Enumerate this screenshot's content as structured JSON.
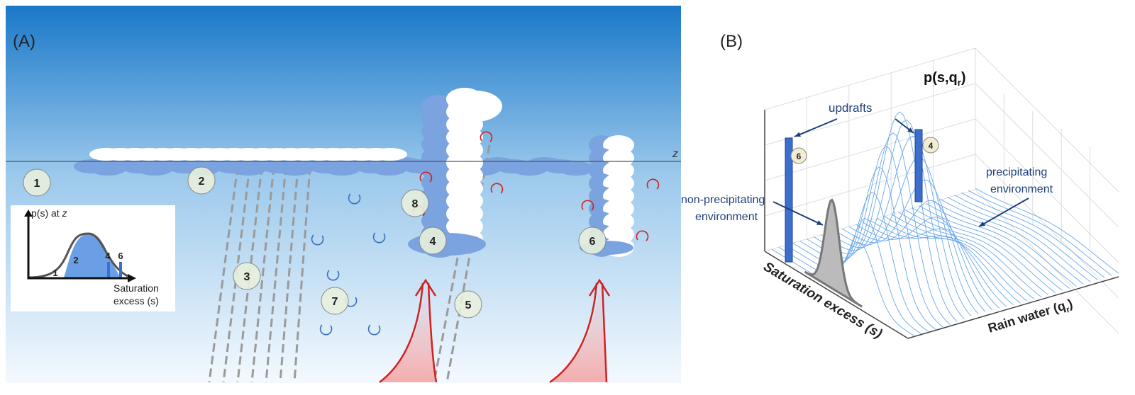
{
  "panel_a": {
    "label": "(A)",
    "height_label": "z",
    "markers": [
      "1",
      "2",
      "3",
      "4",
      "5",
      "6",
      "7",
      "8"
    ],
    "inset": {
      "y_label": "p(s) at ",
      "y_label_var": "z",
      "regions": [
        "1",
        "2",
        "4",
        "6"
      ],
      "x_label": [
        "Saturation",
        "excess (s)"
      ]
    }
  },
  "panel_b": {
    "label": "(B)",
    "z_label": {
      "text": "p(s,q",
      "sub": "r",
      "end": ")"
    },
    "updrafts_label": "updrafts",
    "bars": [
      "6",
      "4"
    ],
    "precip_label": [
      "precipitating",
      "environment"
    ],
    "nonprecip_label": [
      "non-precipitating",
      "environment"
    ],
    "x_label": "Saturation excess (s)",
    "y_label": {
      "text": "Rain water (q",
      "sub": "r",
      "end": ")"
    }
  }
}
